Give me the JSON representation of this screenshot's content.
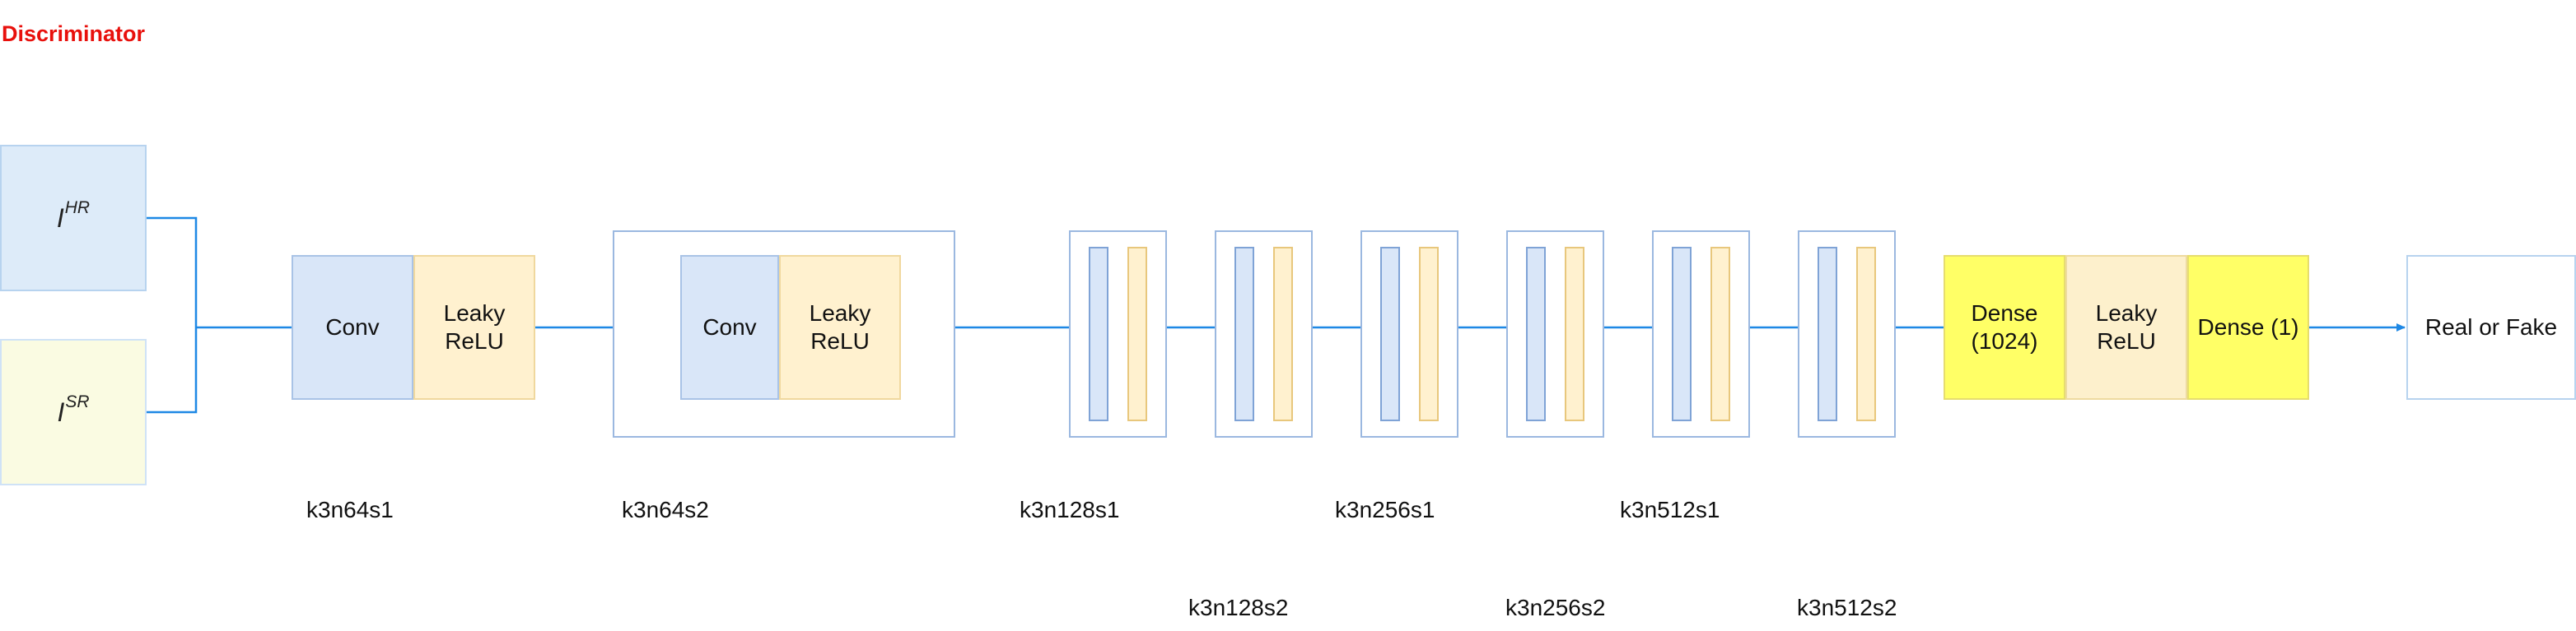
{
  "title": "Discriminator",
  "inputs": {
    "hr": {
      "base": "I",
      "sup": "HR"
    },
    "sr": {
      "base": "I",
      "sup": "SR"
    }
  },
  "block1": {
    "conv": "Conv",
    "leaky": "Leaky\nReLU",
    "label": "k3n64s1"
  },
  "block2": {
    "conv": "Conv",
    "leaky": "Leaky\nReLU",
    "label": "k3n64s2"
  },
  "blocks": [
    {
      "label": "k3n128s1"
    },
    {
      "label": "k3n128s2"
    },
    {
      "label": "k3n256s1"
    },
    {
      "label": "k3n256s2"
    },
    {
      "label": "k3n512s1"
    },
    {
      "label": "k3n512s2"
    }
  ],
  "head": {
    "dense1": "Dense\n(1024)",
    "leaky": "Leaky\nReLU",
    "dense2": "Dense (1)"
  },
  "output": "Real or Fake",
  "colors": {
    "title": "#e8100c",
    "wire": "#1e88e5",
    "dense": "#ffff66"
  }
}
